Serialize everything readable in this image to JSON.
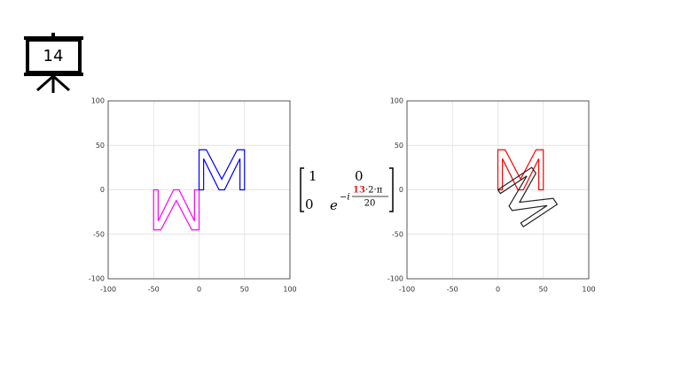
{
  "slide_number": "14",
  "matrix": {
    "a11": "1",
    "a12": "0",
    "a21": "0",
    "base": "e",
    "sign": "−i",
    "k": "13",
    "factor": "·2·π",
    "denominator": "20"
  },
  "chart_data": [
    {
      "type": "line",
      "xlim": [
        -100,
        100
      ],
      "ylim": [
        -100,
        100
      ],
      "xticks": [
        -100,
        -50,
        0,
        50,
        100
      ],
      "yticks": [
        -100,
        -50,
        0,
        50,
        100
      ],
      "grid": true,
      "series": [
        {
          "color": "#ff00ff",
          "x": [
            0,
            0,
            -8,
            -25,
            -42,
            -50,
            -50,
            -45,
            -45,
            -28,
            -22,
            -5,
            -5,
            0
          ],
          "values": [
            0,
            -45,
            -45,
            -12,
            -45,
            -45,
            0,
            0,
            -35,
            0,
            0,
            -35,
            0,
            0
          ]
        },
        {
          "color": "#0000ff",
          "x": [
            0,
            0,
            8,
            25,
            42,
            50,
            50,
            45,
            45,
            28,
            22,
            5,
            5,
            0
          ],
          "values": [
            0,
            45,
            45,
            12,
            45,
            45,
            0,
            0,
            35,
            0,
            0,
            35,
            0,
            0
          ]
        }
      ]
    },
    {
      "type": "line",
      "xlim": [
        -100,
        100
      ],
      "ylim": [
        -100,
        100
      ],
      "xticks": [
        -100,
        -50,
        0,
        50,
        100
      ],
      "yticks": [
        -100,
        -50,
        0,
        50,
        100
      ],
      "grid": true,
      "series": [
        {
          "color": "#ff0000",
          "x": [
            0,
            0,
            8,
            25,
            42,
            50,
            50,
            45,
            45,
            28,
            22,
            5,
            5,
            0
          ],
          "values": [
            0,
            45,
            45,
            12,
            45,
            45,
            0,
            0,
            35,
            0,
            0,
            35,
            0,
            0
          ]
        },
        {
          "color": "#222222",
          "x": [
            0,
            37.3,
            41.8,
            23.9,
            60.8,
            65.3,
            28,
            25.2,
            54.2,
            15.7,
            12.3,
            31.8,
            2.8,
            0
          ],
          "values": [
            0,
            25.2,
            18.6,
            -14,
            -9.6,
            -16.3,
            -41.5,
            -37.3,
            -17.7,
            -23.2,
            -18.2,
            15.5,
            -4.1,
            0
          ]
        }
      ]
    }
  ]
}
